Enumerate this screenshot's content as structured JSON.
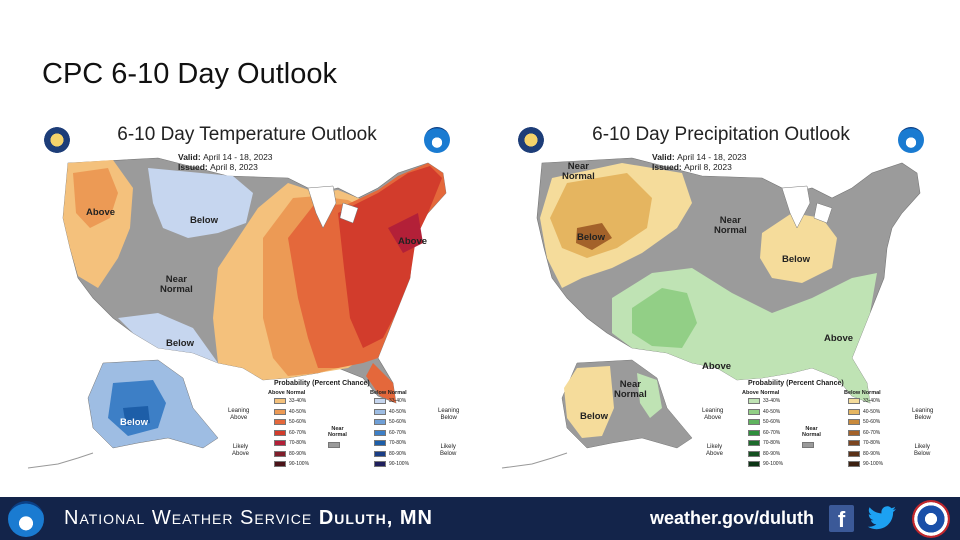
{
  "slide": {
    "title": "CPC 6-10 Day Outlook"
  },
  "temperature": {
    "title": "6-10 Day Temperature Outlook",
    "valid_label": "Valid:",
    "valid_value": "April 14 - 18, 2023",
    "issued_label": "Issued:",
    "issued_value": "April 8, 2023",
    "regions": {
      "above_west": "Above",
      "below_north": "Below",
      "near_normal": "Near\nNormal",
      "below_southwest": "Below",
      "above_east": "Above",
      "below_alaska": "Below"
    },
    "legend": {
      "title": "Probability (Percent Chance)",
      "above_head": "Above Normal",
      "below_head": "Below Normal",
      "above_items": [
        "33-40%",
        "40-50%",
        "50-60%",
        "60-70%",
        "70-80%",
        "80-90%",
        "90-100%"
      ],
      "below_items": [
        "33-40%",
        "40-50%",
        "50-60%",
        "60-70%",
        "70-80%",
        "80-90%",
        "90-100%"
      ],
      "leaning_above": "Leaning\nAbove",
      "likely_above": "Likely\nAbove",
      "leaning_below": "Leaning\nBelow",
      "likely_below": "Likely\nBelow",
      "near_normal": "Near\nNormal",
      "above_colors": [
        "#f4c17c",
        "#ec9a55",
        "#e4683b",
        "#d23c2c",
        "#b32038",
        "#7f1d2a",
        "#4a1218"
      ],
      "below_colors": [
        "#c6d6ef",
        "#9ebde3",
        "#6f9fd6",
        "#3d7fc6",
        "#1d5ea8",
        "#1a3d85",
        "#1f1f5c"
      ],
      "normal_color": "#9a9a9a"
    }
  },
  "precipitation": {
    "title": "6-10 Day Precipitation Outlook",
    "valid_label": "Valid:",
    "valid_value": "April 14 - 18, 2023",
    "issued_label": "Issued:",
    "issued_value": "April 8, 2023",
    "regions": {
      "near_normal_nw": "Near\nNormal",
      "below_west": "Below",
      "near_normal_central": "Near\nNormal",
      "below_midwest": "Below",
      "above_southeast": "Above",
      "above_south": "Above",
      "near_normal_alaska": "Near\nNormal",
      "below_alaska": "Below"
    },
    "legend": {
      "title": "Probability (Percent Chance)",
      "above_head": "Above Normal",
      "below_head": "Below Normal",
      "above_items": [
        "33-40%",
        "40-50%",
        "50-60%",
        "60-70%",
        "70-80%",
        "80-90%",
        "90-100%"
      ],
      "below_items": [
        "33-40%",
        "40-50%",
        "50-60%",
        "60-70%",
        "70-80%",
        "80-90%",
        "90-100%"
      ],
      "leaning_above": "Leaning\nAbove",
      "likely_above": "Likely\nAbove",
      "leaning_below": "Leaning\nBelow",
      "likely_below": "Likely\nBelow",
      "near_normal": "Near\nNormal",
      "above_colors": [
        "#bfe3b4",
        "#92cf86",
        "#5fb35e",
        "#2f8f3d",
        "#1d6b2c",
        "#145020",
        "#0b3414"
      ],
      "below_colors": [
        "#f5dc9b",
        "#e5b560",
        "#c98a3c",
        "#a3622a",
        "#7c4520",
        "#5a3118",
        "#3c2010"
      ],
      "normal_color": "#9a9a9a"
    }
  },
  "footer": {
    "agency_name": "National Weather Service",
    "office": "Duluth, MN",
    "url": "weather.gov/duluth",
    "facebook_glyph": "f",
    "icons": [
      "noaa-logo",
      "facebook-icon",
      "twitter-icon",
      "nws-seal"
    ]
  }
}
